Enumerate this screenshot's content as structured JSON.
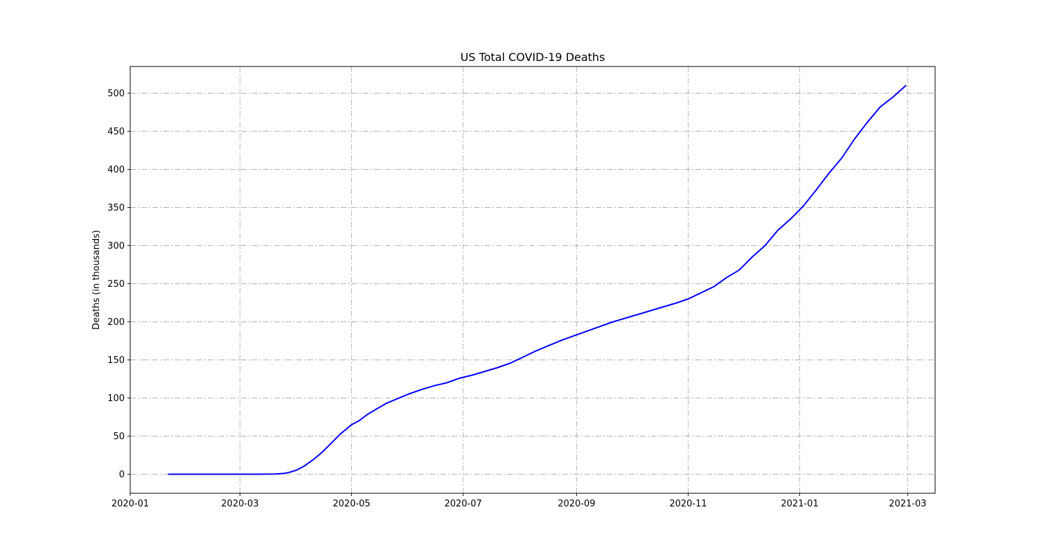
{
  "chart_data": {
    "type": "line",
    "title": "US Total COVID-19 Deaths",
    "xlabel": "",
    "ylabel": "Deaths (in thousands)",
    "x_axis_type": "date",
    "xlim": [
      "2020-01-01",
      "2021-03-16"
    ],
    "ylim": [
      -25,
      535
    ],
    "x_ticks": [
      "2020-01",
      "2020-03",
      "2020-05",
      "2020-07",
      "2020-09",
      "2020-11",
      "2021-01",
      "2021-03"
    ],
    "y_ticks": [
      0,
      50,
      100,
      150,
      200,
      250,
      300,
      350,
      400,
      450,
      500
    ],
    "grid": true,
    "legend": false,
    "series": [
      {
        "color": "#0000ff",
        "x": [
          "2020-01-22",
          "2020-02-01",
          "2020-02-15",
          "2020-03-01",
          "2020-03-10",
          "2020-03-15",
          "2020-03-20",
          "2020-03-25",
          "2020-03-28",
          "2020-04-01",
          "2020-04-05",
          "2020-04-10",
          "2020-04-15",
          "2020-04-20",
          "2020-04-25",
          "2020-05-01",
          "2020-05-05",
          "2020-05-10",
          "2020-05-15",
          "2020-05-20",
          "2020-05-25",
          "2020-06-01",
          "2020-06-08",
          "2020-06-15",
          "2020-06-22",
          "2020-06-29",
          "2020-07-06",
          "2020-07-13",
          "2020-07-20",
          "2020-07-27",
          "2020-08-03",
          "2020-08-10",
          "2020-08-17",
          "2020-08-24",
          "2020-08-31",
          "2020-09-07",
          "2020-09-14",
          "2020-09-21",
          "2020-09-28",
          "2020-10-05",
          "2020-10-12",
          "2020-10-19",
          "2020-10-26",
          "2020-11-01",
          "2020-11-08",
          "2020-11-15",
          "2020-11-22",
          "2020-11-29",
          "2020-12-06",
          "2020-12-13",
          "2020-12-20",
          "2020-12-27",
          "2021-01-03",
          "2021-01-10",
          "2021-01-17",
          "2021-01-24",
          "2021-01-31",
          "2021-02-07",
          "2021-02-14",
          "2021-02-21",
          "2021-02-28"
        ],
        "values": [
          0,
          0,
          0,
          0.001,
          0.03,
          0.07,
          0.3,
          1.0,
          2.5,
          5.5,
          10.5,
          19,
          29,
          41,
          53,
          65,
          70,
          79,
          86,
          93,
          98,
          105,
          111,
          116,
          120,
          126,
          130,
          135,
          140,
          146,
          154,
          162,
          169,
          176,
          182,
          188,
          194,
          200,
          205,
          210,
          215,
          220,
          225,
          230,
          238,
          246,
          258,
          268,
          285,
          300,
          320,
          335,
          352,
          373,
          395,
          415,
          440,
          462,
          482,
          495,
          510
        ]
      }
    ]
  }
}
